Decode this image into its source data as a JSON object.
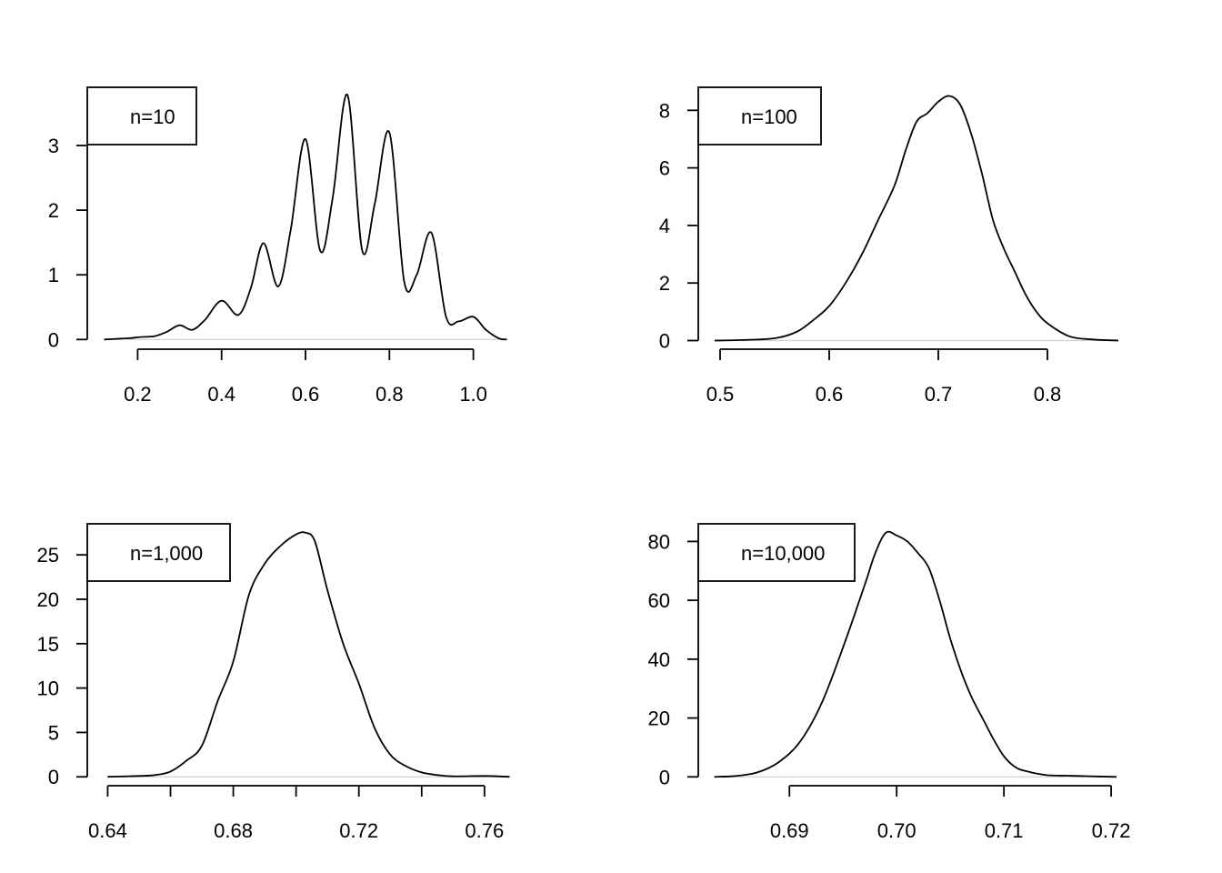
{
  "chart_data": [
    {
      "type": "line",
      "legend": "n=10",
      "legend_position": "top-left",
      "xlim": [
        0.08,
        1.12
      ],
      "ylim": [
        -0.15,
        3.9
      ],
      "x_ticks": [
        0.2,
        0.4,
        0.6,
        0.8,
        1.0
      ],
      "x_tick_labels": [
        "0.2",
        "0.4",
        "0.6",
        "0.8",
        "1.0"
      ],
      "y_ticks": [
        0,
        1,
        2,
        3
      ],
      "y_tick_labels": [
        "0",
        "1",
        "2",
        "3"
      ],
      "series": [
        {
          "x": [
            0.12,
            0.15,
            0.18,
            0.21,
            0.24,
            0.27,
            0.3,
            0.33,
            0.36,
            0.4,
            0.44,
            0.47,
            0.5,
            0.535,
            0.565,
            0.6,
            0.635,
            0.665,
            0.7,
            0.735,
            0.765,
            0.8,
            0.835,
            0.865,
            0.9,
            0.935,
            0.965,
            1.0,
            1.03,
            1.06,
            1.08
          ],
          "y": [
            0.0,
            0.01,
            0.02,
            0.04,
            0.05,
            0.12,
            0.22,
            0.15,
            0.3,
            0.6,
            0.38,
            0.8,
            1.49,
            0.82,
            1.7,
            3.1,
            1.37,
            2.2,
            3.78,
            1.38,
            2.1,
            3.2,
            0.9,
            1.0,
            1.65,
            0.35,
            0.28,
            0.35,
            0.15,
            0.02,
            0.0
          ]
        }
      ]
    },
    {
      "type": "line",
      "legend": "n=100",
      "legend_position": "top-left",
      "xlim": [
        0.48,
        0.88
      ],
      "ylim": [
        -0.3,
        8.8
      ],
      "x_ticks": [
        0.5,
        0.6,
        0.7,
        0.8
      ],
      "x_tick_labels": [
        "0.5",
        "0.6",
        "0.7",
        "0.8"
      ],
      "y_ticks": [
        0,
        2,
        4,
        6,
        8
      ],
      "y_tick_labels": [
        "0",
        "2",
        "4",
        "6",
        "8"
      ],
      "series": [
        {
          "x": [
            0.495,
            0.52,
            0.55,
            0.57,
            0.585,
            0.6,
            0.615,
            0.63,
            0.645,
            0.66,
            0.67,
            0.68,
            0.69,
            0.7,
            0.71,
            0.72,
            0.73,
            0.74,
            0.75,
            0.76,
            0.77,
            0.78,
            0.79,
            0.8,
            0.82,
            0.84,
            0.865
          ],
          "y": [
            0.0,
            0.02,
            0.08,
            0.3,
            0.7,
            1.2,
            2.0,
            3.0,
            4.2,
            5.4,
            6.6,
            7.6,
            7.9,
            8.3,
            8.5,
            8.2,
            7.2,
            5.8,
            4.2,
            3.2,
            2.4,
            1.6,
            1.0,
            0.6,
            0.15,
            0.04,
            0.0
          ]
        }
      ]
    },
    {
      "type": "line",
      "legend": "n=1,000",
      "legend_position": "top-left",
      "xlim": [
        0.6335,
        0.7725
      ],
      "ylim": [
        -1.0,
        28.5
      ],
      "x_ticks": [
        0.64,
        0.66,
        0.68,
        0.7,
        0.72,
        0.74,
        0.76
      ],
      "x_tick_labels": [
        "0.64",
        "",
        "0.68",
        "",
        "0.72",
        "",
        "0.76"
      ],
      "y_ticks": [
        0,
        5,
        10,
        15,
        20,
        25
      ],
      "y_tick_labels": [
        "0",
        "5",
        "10",
        "15",
        "20",
        "25"
      ],
      "series": [
        {
          "x": [
            0.64,
            0.65,
            0.655,
            0.66,
            0.665,
            0.67,
            0.675,
            0.68,
            0.685,
            0.69,
            0.695,
            0.7,
            0.703,
            0.706,
            0.71,
            0.715,
            0.72,
            0.725,
            0.73,
            0.735,
            0.74,
            0.745,
            0.75,
            0.76,
            0.768
          ],
          "y": [
            0.0,
            0.1,
            0.2,
            0.6,
            1.8,
            3.5,
            8.5,
            13.0,
            20.5,
            24.0,
            26.0,
            27.3,
            27.5,
            26.5,
            21.0,
            15.0,
            10.5,
            5.5,
            2.5,
            1.2,
            0.5,
            0.2,
            0.05,
            0.1,
            0.0
          ]
        }
      ]
    },
    {
      "type": "line",
      "legend": "n=10,000",
      "legend_position": "top-left",
      "xlim": [
        0.6815,
        0.7222
      ],
      "ylim": [
        -3.0,
        86.0
      ],
      "x_ticks": [
        0.69,
        0.7,
        0.71,
        0.72
      ],
      "x_tick_labels": [
        "0.69",
        "0.70",
        "0.71",
        "0.72"
      ],
      "y_ticks": [
        0,
        20,
        40,
        60,
        80
      ],
      "y_tick_labels": [
        "0",
        "20",
        "40",
        "60",
        "80"
      ],
      "series": [
        {
          "x": [
            0.683,
            0.685,
            0.687,
            0.689,
            0.691,
            0.693,
            0.695,
            0.697,
            0.698,
            0.699,
            0.7,
            0.701,
            0.702,
            0.703,
            0.704,
            0.705,
            0.706,
            0.707,
            0.708,
            0.709,
            0.71,
            0.711,
            0.712,
            0.714,
            0.716,
            0.718,
            0.7205
          ],
          "y": [
            0.0,
            0.3,
            1.5,
            5.0,
            12.0,
            25.0,
            44.0,
            65.0,
            76.0,
            83.0,
            82.0,
            80.0,
            76.0,
            71.0,
            60.0,
            47.0,
            36.0,
            27.0,
            20.0,
            13.0,
            7.0,
            3.5,
            2.0,
            0.6,
            0.4,
            0.2,
            0.0
          ]
        }
      ]
    }
  ]
}
